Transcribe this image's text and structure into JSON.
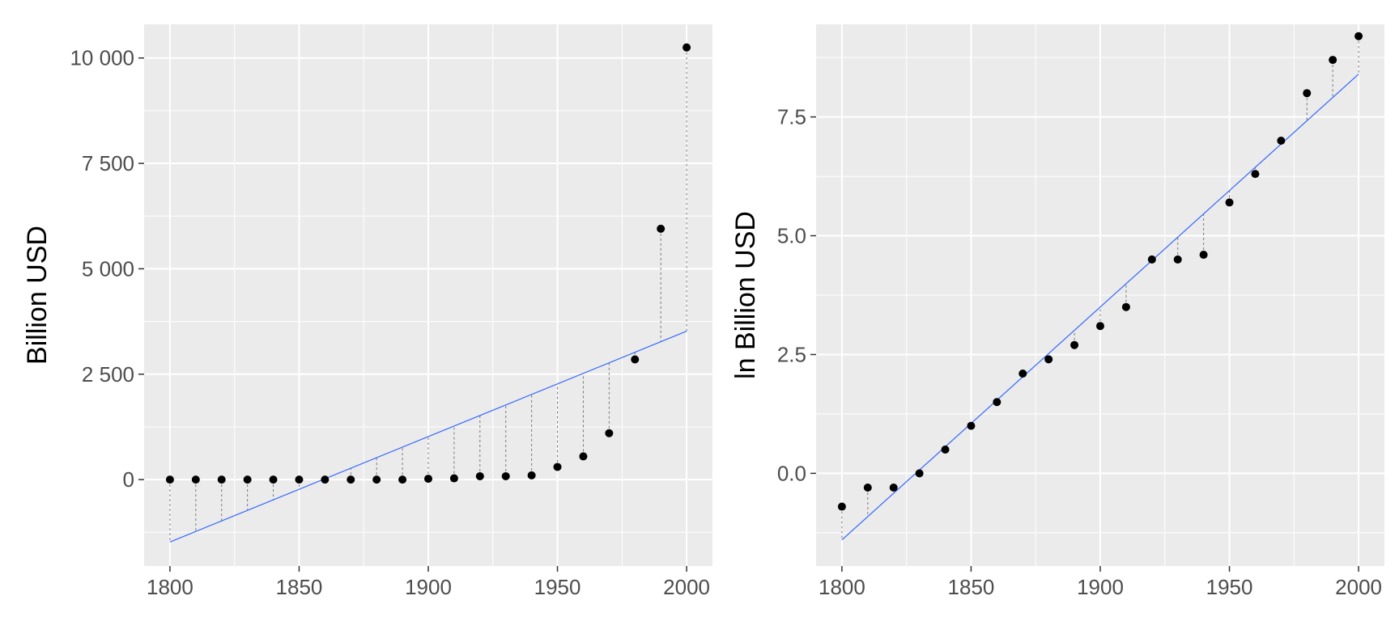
{
  "chart_data": [
    {
      "type": "scatter",
      "ylabel": "Billion USD",
      "xlabel": "",
      "xlim": [
        1790,
        2010
      ],
      "ylim": [
        -2050,
        10800
      ],
      "xticks": [
        1800,
        1850,
        1900,
        1950,
        2000
      ],
      "xtick_labels": [
        "1800",
        "1850",
        "1900",
        "1950",
        "2000"
      ],
      "yticks": [
        0,
        2500,
        5000,
        7500,
        10000
      ],
      "ytick_labels": [
        "0",
        "2 500",
        "5 000",
        "7 500",
        "10 000"
      ],
      "grid": true,
      "points": {
        "x": [
          1800,
          1810,
          1820,
          1830,
          1840,
          1850,
          1860,
          1870,
          1880,
          1890,
          1900,
          1910,
          1920,
          1930,
          1940,
          1950,
          1960,
          1970,
          1980,
          1990,
          2000
        ],
        "y": [
          0,
          0,
          0,
          0,
          0,
          0,
          0,
          0,
          0,
          0,
          20,
          30,
          80,
          80,
          100,
          300,
          550,
          1100,
          2850,
          5950,
          10250
        ]
      },
      "fit_line": {
        "x": [
          1800,
          2000
        ],
        "y": [
          -1480,
          3520
        ],
        "color": "#3366ff"
      },
      "residual_segments": true
    },
    {
      "type": "scatter",
      "ylabel": "ln Billion USD",
      "xlabel": "",
      "xlim": [
        1790,
        2010
      ],
      "ylim": [
        -1.95,
        9.45
      ],
      "xticks": [
        1800,
        1850,
        1900,
        1950,
        2000
      ],
      "xtick_labels": [
        "1800",
        "1850",
        "1900",
        "1950",
        "2000"
      ],
      "yticks": [
        0,
        2.5,
        5,
        7.5
      ],
      "ytick_labels": [
        "0.0",
        "2.5",
        "5.0",
        "7.5"
      ],
      "grid": true,
      "points": {
        "x": [
          1800,
          1810,
          1820,
          1830,
          1840,
          1850,
          1860,
          1870,
          1880,
          1890,
          1900,
          1910,
          1920,
          1930,
          1940,
          1950,
          1960,
          1970,
          1980,
          1990,
          2000
        ],
        "y": [
          -0.7,
          -0.3,
          -0.3,
          0.0,
          0.5,
          1.0,
          1.5,
          2.1,
          2.4,
          2.7,
          3.1,
          3.5,
          4.5,
          4.5,
          4.6,
          5.7,
          6.3,
          7.0,
          8.0,
          8.7,
          9.2
        ]
      },
      "fit_line": {
        "x": [
          1800,
          2000
        ],
        "y": [
          -1.4,
          8.4
        ],
        "color": "#3366ff"
      },
      "residual_segments": true
    }
  ]
}
